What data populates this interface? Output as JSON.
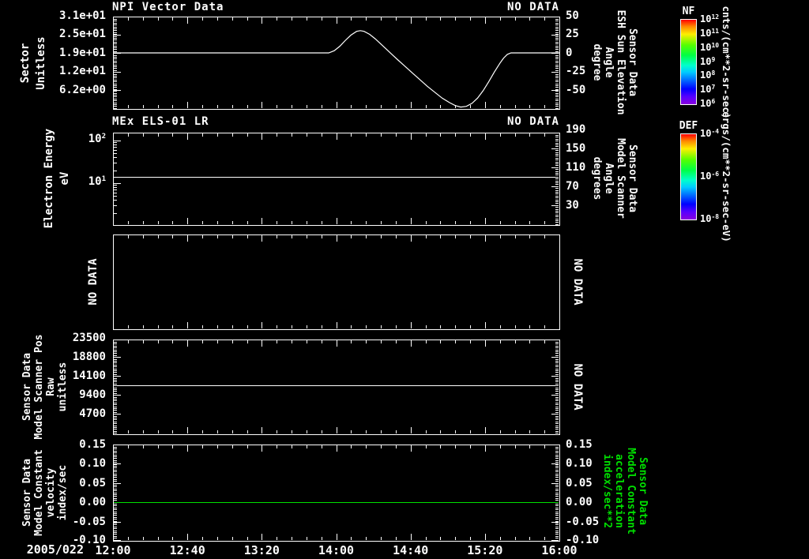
{
  "window": {
    "background": "#000000",
    "foreground": "#ffffff",
    "green": "#00e000"
  },
  "x_axis": {
    "date_label": "2005/022",
    "tick_labels": [
      "12:00",
      "12:40",
      "13:20",
      "14:00",
      "14:40",
      "15:20",
      "16:00"
    ],
    "major_interval_minutes": 40,
    "minor_interval_minutes": 8,
    "range_minutes": [
      0,
      240
    ]
  },
  "chart_data": [
    {
      "panel": 1,
      "type": "line",
      "title": "NPI Vector Data",
      "no_data": "NO DATA",
      "left_axis": {
        "label_lines": [
          "Sector",
          "Unitless"
        ],
        "tick_labels": [
          "3.1e+01",
          "2.5e+01",
          "1.9e+01",
          "1.2e+01",
          "6.2e+00"
        ]
      },
      "right_axis": {
        "label_lines": [
          "Sensor Data",
          "ESH Sun Elevation",
          "Angle",
          "degree"
        ],
        "tick_labels": [
          "50",
          "25",
          "0",
          "-25",
          "-50"
        ]
      },
      "series": [
        {
          "name": "ESH Sun Elevation Angle",
          "color": "#ffffff",
          "axis": "right",
          "points_min_deg": [
            [
              0,
              0
            ],
            [
              116,
              0
            ],
            [
              119,
              3
            ],
            [
              122,
              9
            ],
            [
              125,
              17
            ],
            [
              128,
              24
            ],
            [
              131,
              29
            ],
            [
              133,
              30
            ],
            [
              135,
              29
            ],
            [
              138,
              25
            ],
            [
              141,
              19
            ],
            [
              144,
              12
            ],
            [
              147,
              5
            ],
            [
              150,
              -2
            ],
            [
              153,
              -9
            ],
            [
              157,
              -18
            ],
            [
              161,
              -27
            ],
            [
              165,
              -36
            ],
            [
              169,
              -45
            ],
            [
              173,
              -53
            ],
            [
              177,
              -61
            ],
            [
              181,
              -67
            ],
            [
              184,
              -71
            ],
            [
              187,
              -73
            ],
            [
              190,
              -72
            ],
            [
              193,
              -68
            ],
            [
              196,
              -61
            ],
            [
              199,
              -51
            ],
            [
              202,
              -39
            ],
            [
              205,
              -26
            ],
            [
              208,
              -14
            ],
            [
              210,
              -7
            ],
            [
              212,
              -2
            ],
            [
              214,
              0
            ],
            [
              240,
              0
            ]
          ]
        }
      ]
    },
    {
      "panel": 2,
      "type": "line",
      "title": "MEx ELS-01 LR",
      "no_data": "NO DATA",
      "left_axis": {
        "label_lines": [
          "Electron Energy",
          "eV"
        ],
        "scale": "log",
        "tick_labels": [
          "10^2",
          "10^1"
        ]
      },
      "right_axis": {
        "label_lines": [
          "Sensor Data",
          "Model Scanner",
          "Angle",
          "degrees"
        ],
        "tick_labels": [
          "190",
          "150",
          "110",
          "70",
          "30"
        ]
      },
      "series": [
        {
          "name": "Model Scanner Angle",
          "color": "#ffffff",
          "axis": "right",
          "constant_value": 90
        }
      ]
    },
    {
      "panel": 3,
      "type": "empty",
      "left_no_data": "NO DATA",
      "right_no_data": "NO DATA"
    },
    {
      "panel": 4,
      "type": "line",
      "left_axis": {
        "label_lines": [
          "Sensor Data",
          "Model Scanner Pos",
          "Raw",
          "unitless"
        ],
        "tick_labels": [
          "23500",
          "18800",
          "14100",
          "9400",
          "4700"
        ]
      },
      "right_no_data": "NO DATA",
      "series": [
        {
          "name": "Model Scanner Pos Raw",
          "color": "#ffffff",
          "axis": "left",
          "constant_value": 11750
        }
      ]
    },
    {
      "panel": 5,
      "type": "line",
      "left_axis": {
        "label_lines": [
          "Sensor Data",
          "Model Constant",
          "velocity",
          "index/sec"
        ],
        "tick_labels": [
          "0.15",
          "0.10",
          "0.05",
          "0.00",
          "-0.05",
          "-0.10"
        ]
      },
      "right_axis": {
        "label_lines": [
          "Sensor Data",
          "Model Constant",
          "acceleration",
          "index/sec**2"
        ],
        "tick_labels": [
          "0.15",
          "0.10",
          "0.05",
          "0.00",
          "-0.05",
          "-0.10"
        ],
        "color": "#00e000"
      },
      "series": [
        {
          "name": "Model Constant velocity",
          "color": "#00e000",
          "axis": "left",
          "constant_value": 0.0
        }
      ]
    }
  ],
  "colorbars": [
    {
      "name": "NF",
      "tick_labels": [
        "10^12",
        "10^11",
        "10^10",
        "10^9",
        "10^8",
        "10^7",
        "10^6"
      ],
      "unit": "cnts/(cm**2-sr-sec)",
      "gradient": [
        [
          "#ff0000",
          0
        ],
        [
          "#ff8800",
          8
        ],
        [
          "#ffee00",
          17
        ],
        [
          "#55ff00",
          30
        ],
        [
          "#00ff44",
          42
        ],
        [
          "#00ffcc",
          54
        ],
        [
          "#00ccff",
          62
        ],
        [
          "#0066ff",
          72
        ],
        [
          "#0000ff",
          82
        ],
        [
          "#5500ff",
          91
        ],
        [
          "#8800dd",
          100
        ]
      ]
    },
    {
      "name": "DEF",
      "tick_labels": [
        "10^-4",
        "10^-6",
        "10^-8"
      ],
      "unit": "ergs/(cm**2-sr-sec-eV)",
      "gradient": [
        [
          "#ff0000",
          0
        ],
        [
          "#ff8800",
          8
        ],
        [
          "#ffee00",
          17
        ],
        [
          "#55ff00",
          30
        ],
        [
          "#00ff44",
          42
        ],
        [
          "#00ffcc",
          54
        ],
        [
          "#00ccff",
          62
        ],
        [
          "#0066ff",
          72
        ],
        [
          "#0000ff",
          82
        ],
        [
          "#5500ff",
          91
        ],
        [
          "#8800dd",
          100
        ]
      ]
    }
  ]
}
